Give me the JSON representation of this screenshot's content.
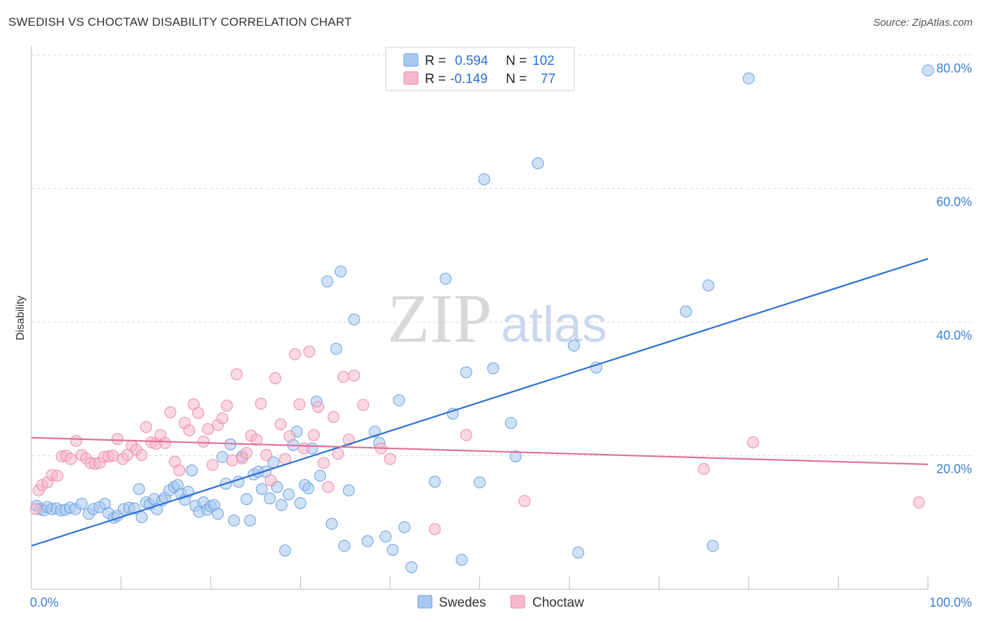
{
  "title": "SWEDISH VS CHOCTAW DISABILITY CORRELATION CHART",
  "source": "Source: ZipAtlas.com",
  "watermark": {
    "zip": "ZIP",
    "atlas": "atlas"
  },
  "legend_box": {
    "rows": [
      {
        "r_label": "R =",
        "r_value": "0.594",
        "n_label": "N =",
        "n_value": "102",
        "color": "#a8c8f0"
      },
      {
        "r_label": "R =",
        "r_value": "-0.149",
        "n_label": "N =",
        "n_value": "77",
        "color": "#f6b8cb"
      }
    ]
  },
  "chart_data": {
    "type": "scatter",
    "title": "SWEDISH VS CHOCTAW DISABILITY CORRELATION CHART",
    "xlabel": "",
    "ylabel": "Disability",
    "xlim": [
      0,
      100
    ],
    "ylim": [
      0,
      80
    ],
    "x_tick_labels": [
      "0.0%",
      "100.0%"
    ],
    "y_ticks": [
      20,
      40,
      60,
      80
    ],
    "y_tick_labels": [
      "20.0%",
      "40.0%",
      "60.0%",
      "80.0%"
    ],
    "grid": "horizontal dashed",
    "legend_placement": "bottom-center",
    "series": [
      {
        "name": "Swedes",
        "color": "#a8c8f0",
        "stroke": "#6a9fe0",
        "line_color": "#2a6fd6",
        "trend": {
          "x": [
            0,
            100
          ],
          "y": [
            6.5,
            49.5
          ]
        },
        "points": [
          [
            0.6,
            12.5
          ],
          [
            1.0,
            12.0
          ],
          [
            1.4,
            11.8
          ],
          [
            1.8,
            12.3
          ],
          [
            2.3,
            12.0
          ],
          [
            2.8,
            12.1
          ],
          [
            3.3,
            11.8
          ],
          [
            3.8,
            11.9
          ],
          [
            4.3,
            12.2
          ],
          [
            4.9,
            12.0
          ],
          [
            5.6,
            12.8
          ],
          [
            6.4,
            11.3
          ],
          [
            6.9,
            12.0
          ],
          [
            7.6,
            12.3
          ],
          [
            8.2,
            12.8
          ],
          [
            8.6,
            11.4
          ],
          [
            9.2,
            10.7
          ],
          [
            9.6,
            11.0
          ],
          [
            10.3,
            12.0
          ],
          [
            10.9,
            12.2
          ],
          [
            11.5,
            12.1
          ],
          [
            12.0,
            15.0
          ],
          [
            12.3,
            10.8
          ],
          [
            12.8,
            13.0
          ],
          [
            13.2,
            12.7
          ],
          [
            13.7,
            13.5
          ],
          [
            14.0,
            12.0
          ],
          [
            14.6,
            13.3
          ],
          [
            14.9,
            13.7
          ],
          [
            15.4,
            14.8
          ],
          [
            15.9,
            15.3
          ],
          [
            16.3,
            15.6
          ],
          [
            16.7,
            14.3
          ],
          [
            17.1,
            13.4
          ],
          [
            17.5,
            14.6
          ],
          [
            17.9,
            17.8
          ],
          [
            18.3,
            12.5
          ],
          [
            18.7,
            11.6
          ],
          [
            19.2,
            13.0
          ],
          [
            19.6,
            11.9
          ],
          [
            20.0,
            12.4
          ],
          [
            20.4,
            12.6
          ],
          [
            20.8,
            11.3
          ],
          [
            21.3,
            19.8
          ],
          [
            21.7,
            15.8
          ],
          [
            22.2,
            21.7
          ],
          [
            22.6,
            10.3
          ],
          [
            23.1,
            16.1
          ],
          [
            23.5,
            19.9
          ],
          [
            24.0,
            13.5
          ],
          [
            24.4,
            10.3
          ],
          [
            24.8,
            17.2
          ],
          [
            25.3,
            17.6
          ],
          [
            25.7,
            15.0
          ],
          [
            26.1,
            17.6
          ],
          [
            26.6,
            13.6
          ],
          [
            27.0,
            19.0
          ],
          [
            27.4,
            15.3
          ],
          [
            27.9,
            12.6
          ],
          [
            28.3,
            5.8
          ],
          [
            28.7,
            14.2
          ],
          [
            29.2,
            21.6
          ],
          [
            29.6,
            23.6
          ],
          [
            30.0,
            12.9
          ],
          [
            30.5,
            15.6
          ],
          [
            30.9,
            15.1
          ],
          [
            31.3,
            21.1
          ],
          [
            31.8,
            28.1
          ],
          [
            32.2,
            17.0
          ],
          [
            33.0,
            46.1
          ],
          [
            33.5,
            9.8
          ],
          [
            34.0,
            36.0
          ],
          [
            34.5,
            47.6
          ],
          [
            34.9,
            6.5
          ],
          [
            35.4,
            14.8
          ],
          [
            36.0,
            40.4
          ],
          [
            37.5,
            7.2
          ],
          [
            38.3,
            23.6
          ],
          [
            38.8,
            21.9
          ],
          [
            39.5,
            7.9
          ],
          [
            40.3,
            5.9
          ],
          [
            41.0,
            28.3
          ],
          [
            41.6,
            9.3
          ],
          [
            42.4,
            3.3
          ],
          [
            45.0,
            16.1
          ],
          [
            46.2,
            46.5
          ],
          [
            47.0,
            26.3
          ],
          [
            48.0,
            4.4
          ],
          [
            48.5,
            32.5
          ],
          [
            50.0,
            16.0
          ],
          [
            50.5,
            61.4
          ],
          [
            51.5,
            33.1
          ],
          [
            53.5,
            24.9
          ],
          [
            54.0,
            19.9
          ],
          [
            56.5,
            63.8
          ],
          [
            60.5,
            36.5
          ],
          [
            61.0,
            5.5
          ],
          [
            63.0,
            33.2
          ],
          [
            73.0,
            41.6
          ],
          [
            75.5,
            45.5
          ],
          [
            76.0,
            6.5
          ],
          [
            80.0,
            76.5
          ],
          [
            100.0,
            77.7
          ]
        ]
      },
      {
        "name": "Choctaw",
        "color": "#f6b8cb",
        "stroke": "#ea8aa8",
        "line_color": "#e0709a",
        "trend": {
          "x": [
            0,
            100
          ],
          "y": [
            22.7,
            18.7
          ]
        },
        "points": [
          [
            0.5,
            12.0
          ],
          [
            0.8,
            14.8
          ],
          [
            1.2,
            15.6
          ],
          [
            1.8,
            16.0
          ],
          [
            2.3,
            17.1
          ],
          [
            2.9,
            17.0
          ],
          [
            3.4,
            19.9
          ],
          [
            3.9,
            20.0
          ],
          [
            4.4,
            19.5
          ],
          [
            5.0,
            22.2
          ],
          [
            5.6,
            20.1
          ],
          [
            6.1,
            19.6
          ],
          [
            6.6,
            18.9
          ],
          [
            7.1,
            18.8
          ],
          [
            7.6,
            18.9
          ],
          [
            8.1,
            19.8
          ],
          [
            8.6,
            19.9
          ],
          [
            9.1,
            20.0
          ],
          [
            9.6,
            22.5
          ],
          [
            10.2,
            19.5
          ],
          [
            10.7,
            20.1
          ],
          [
            11.2,
            21.5
          ],
          [
            11.7,
            20.9
          ],
          [
            12.3,
            20.1
          ],
          [
            12.8,
            24.3
          ],
          [
            13.4,
            22.0
          ],
          [
            13.9,
            21.8
          ],
          [
            14.4,
            23.1
          ],
          [
            14.9,
            21.9
          ],
          [
            15.5,
            26.5
          ],
          [
            16.0,
            19.1
          ],
          [
            16.5,
            17.8
          ],
          [
            17.1,
            24.9
          ],
          [
            17.6,
            23.8
          ],
          [
            18.1,
            27.7
          ],
          [
            18.6,
            26.4
          ],
          [
            19.2,
            22.1
          ],
          [
            19.7,
            24.0
          ],
          [
            20.2,
            18.6
          ],
          [
            20.8,
            24.6
          ],
          [
            21.3,
            25.6
          ],
          [
            21.8,
            27.5
          ],
          [
            22.4,
            19.3
          ],
          [
            22.9,
            32.2
          ],
          [
            23.5,
            19.6
          ],
          [
            24.0,
            20.4
          ],
          [
            24.5,
            23.0
          ],
          [
            25.1,
            22.4
          ],
          [
            25.6,
            27.8
          ],
          [
            26.2,
            20.1
          ],
          [
            26.7,
            16.3
          ],
          [
            27.2,
            31.6
          ],
          [
            27.8,
            24.7
          ],
          [
            28.3,
            19.5
          ],
          [
            28.8,
            22.9
          ],
          [
            29.4,
            35.2
          ],
          [
            29.9,
            27.7
          ],
          [
            30.4,
            21.1
          ],
          [
            31.0,
            35.6
          ],
          [
            31.5,
            23.1
          ],
          [
            32.0,
            27.3
          ],
          [
            32.6,
            18.9
          ],
          [
            33.1,
            15.3
          ],
          [
            33.7,
            25.8
          ],
          [
            34.2,
            20.3
          ],
          [
            34.8,
            31.8
          ],
          [
            35.4,
            22.4
          ],
          [
            36.0,
            32.0
          ],
          [
            37.0,
            27.6
          ],
          [
            39.0,
            21.1
          ],
          [
            40.0,
            19.5
          ],
          [
            45.0,
            9.0
          ],
          [
            48.5,
            23.1
          ],
          [
            55.0,
            13.2
          ],
          [
            75.0,
            18.0
          ],
          [
            80.5,
            22.0
          ],
          [
            99.0,
            13.0
          ]
        ]
      }
    ]
  }
}
